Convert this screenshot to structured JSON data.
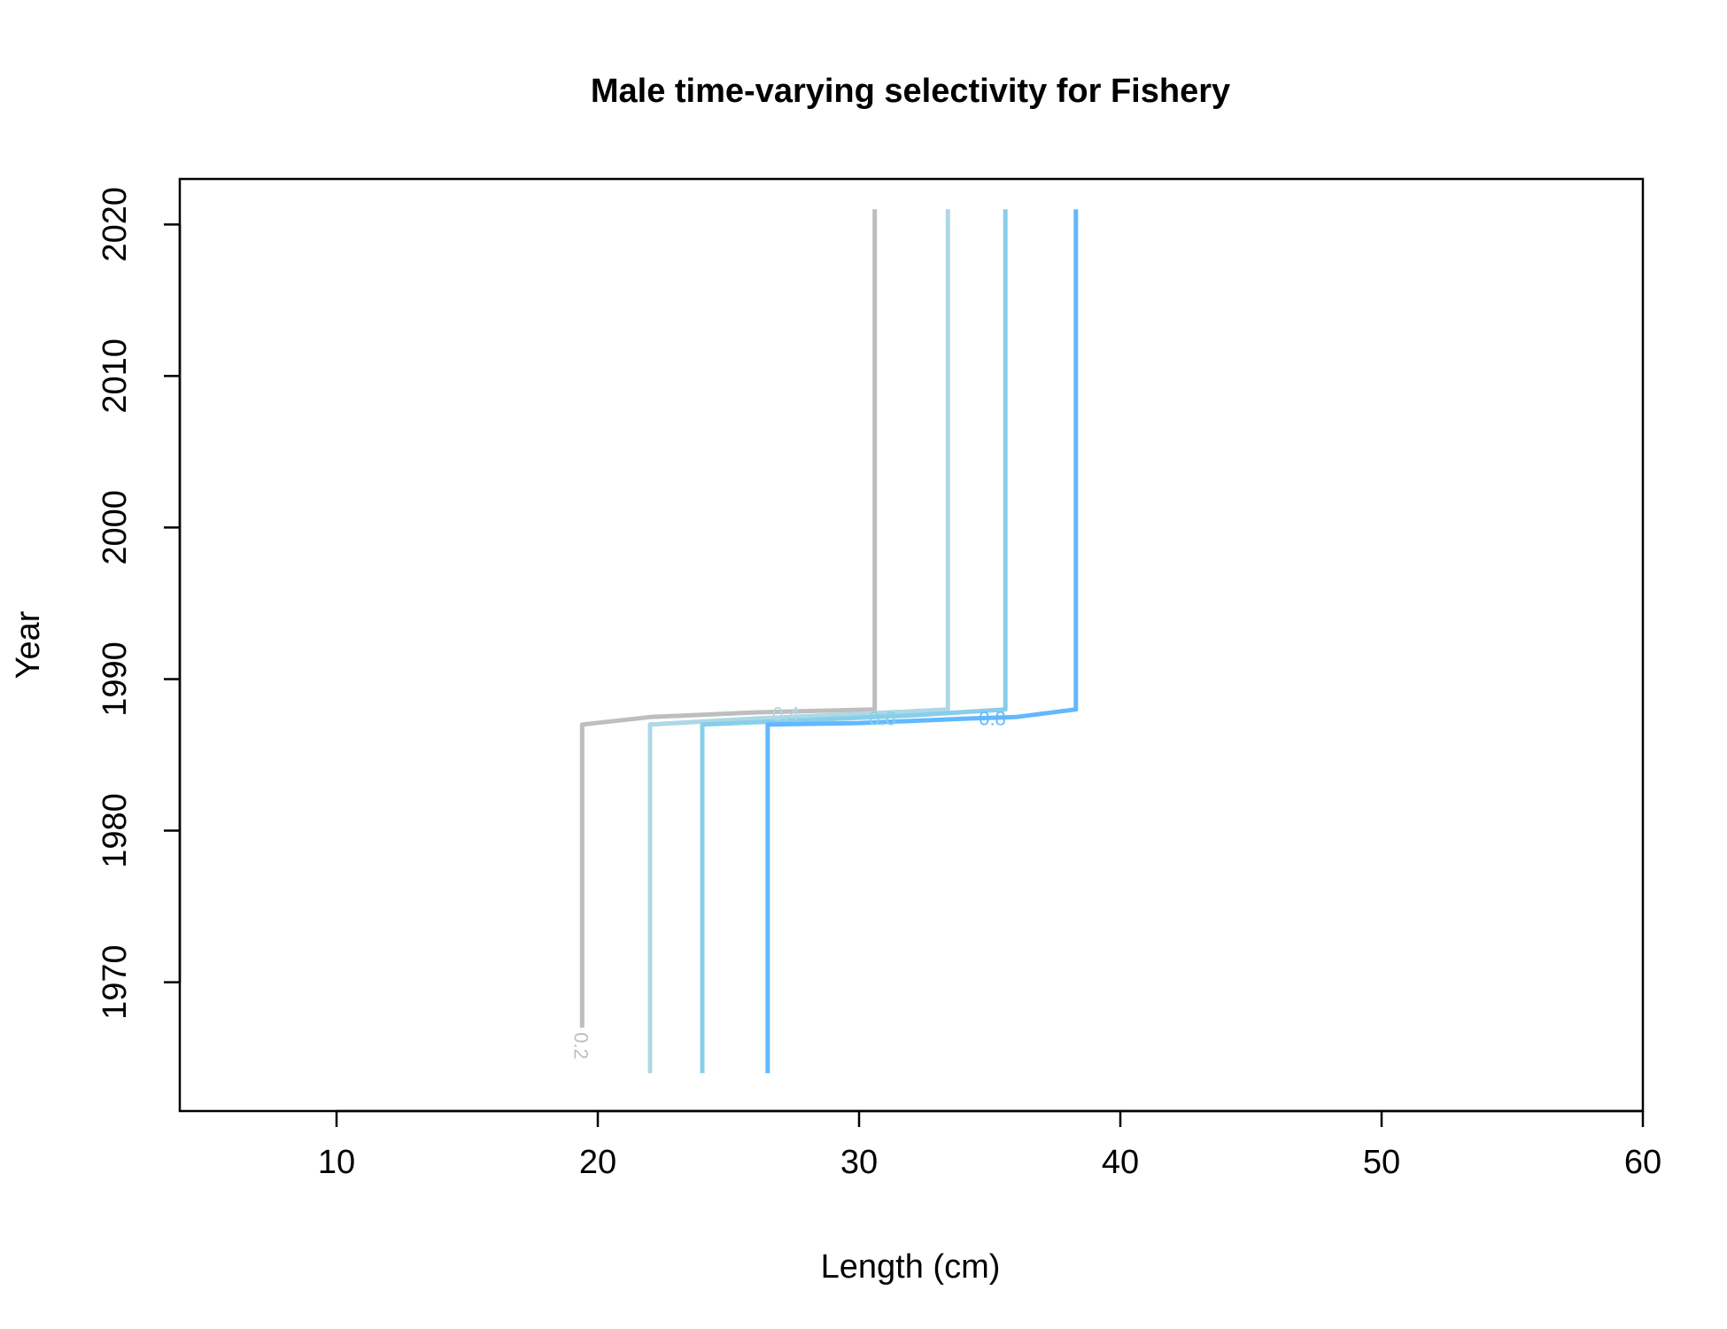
{
  "chart_data": {
    "type": "line",
    "subtype": "contour",
    "title": "Male time-varying selectivity for Fishery",
    "xlabel": "Length (cm)",
    "ylabel": "Year",
    "xlim": [
      4,
      60
    ],
    "ylim": [
      1961.5,
      2023
    ],
    "xticks": [
      10,
      20,
      30,
      40,
      50,
      60
    ],
    "yticks": [
      1970,
      1980,
      1990,
      2000,
      2010,
      2020
    ],
    "grid": false,
    "legend": "none",
    "series": [
      {
        "level": "0.2",
        "color": "#bebebe",
        "points": [
          [
            19.4,
            1967
          ],
          [
            19.4,
            1987
          ],
          [
            22,
            1987.5
          ],
          [
            26,
            1987.8
          ],
          [
            30.6,
            1988
          ],
          [
            30.6,
            2021
          ]
        ],
        "label": {
          "text": "0.2",
          "x": 19.3,
          "y": 1965.8,
          "rotate": 90
        }
      },
      {
        "level": "0.4",
        "color": "#add8e6",
        "points": [
          [
            22,
            1964
          ],
          [
            22,
            1987
          ],
          [
            26,
            1987.4
          ],
          [
            30,
            1987.7
          ],
          [
            33.4,
            1988
          ],
          [
            33.4,
            2021
          ]
        ],
        "label": {
          "text": "0.4",
          "x": 27.2,
          "y": 1987.6,
          "rotate": 0
        }
      },
      {
        "level": "0.6",
        "color": "#87ceeb",
        "points": [
          [
            24,
            1964
          ],
          [
            24,
            1987
          ],
          [
            28,
            1987.3
          ],
          [
            32,
            1987.6
          ],
          [
            35.6,
            1988
          ],
          [
            35.6,
            2021
          ]
        ],
        "label": {
          "text": "0.6",
          "x": 30.9,
          "y": 1987.3,
          "rotate": 0
        }
      },
      {
        "level": "0.8",
        "color": "#63b8ff",
        "points": [
          [
            26.5,
            1964
          ],
          [
            26.5,
            1987
          ],
          [
            30,
            1987.1
          ],
          [
            34.2,
            1987.4
          ],
          [
            36,
            1987.5
          ],
          [
            38.3,
            1988
          ],
          [
            38.3,
            2021
          ]
        ],
        "label": {
          "text": "0.8",
          "x": 35.1,
          "y": 1987.3,
          "rotate": 0
        }
      }
    ]
  }
}
